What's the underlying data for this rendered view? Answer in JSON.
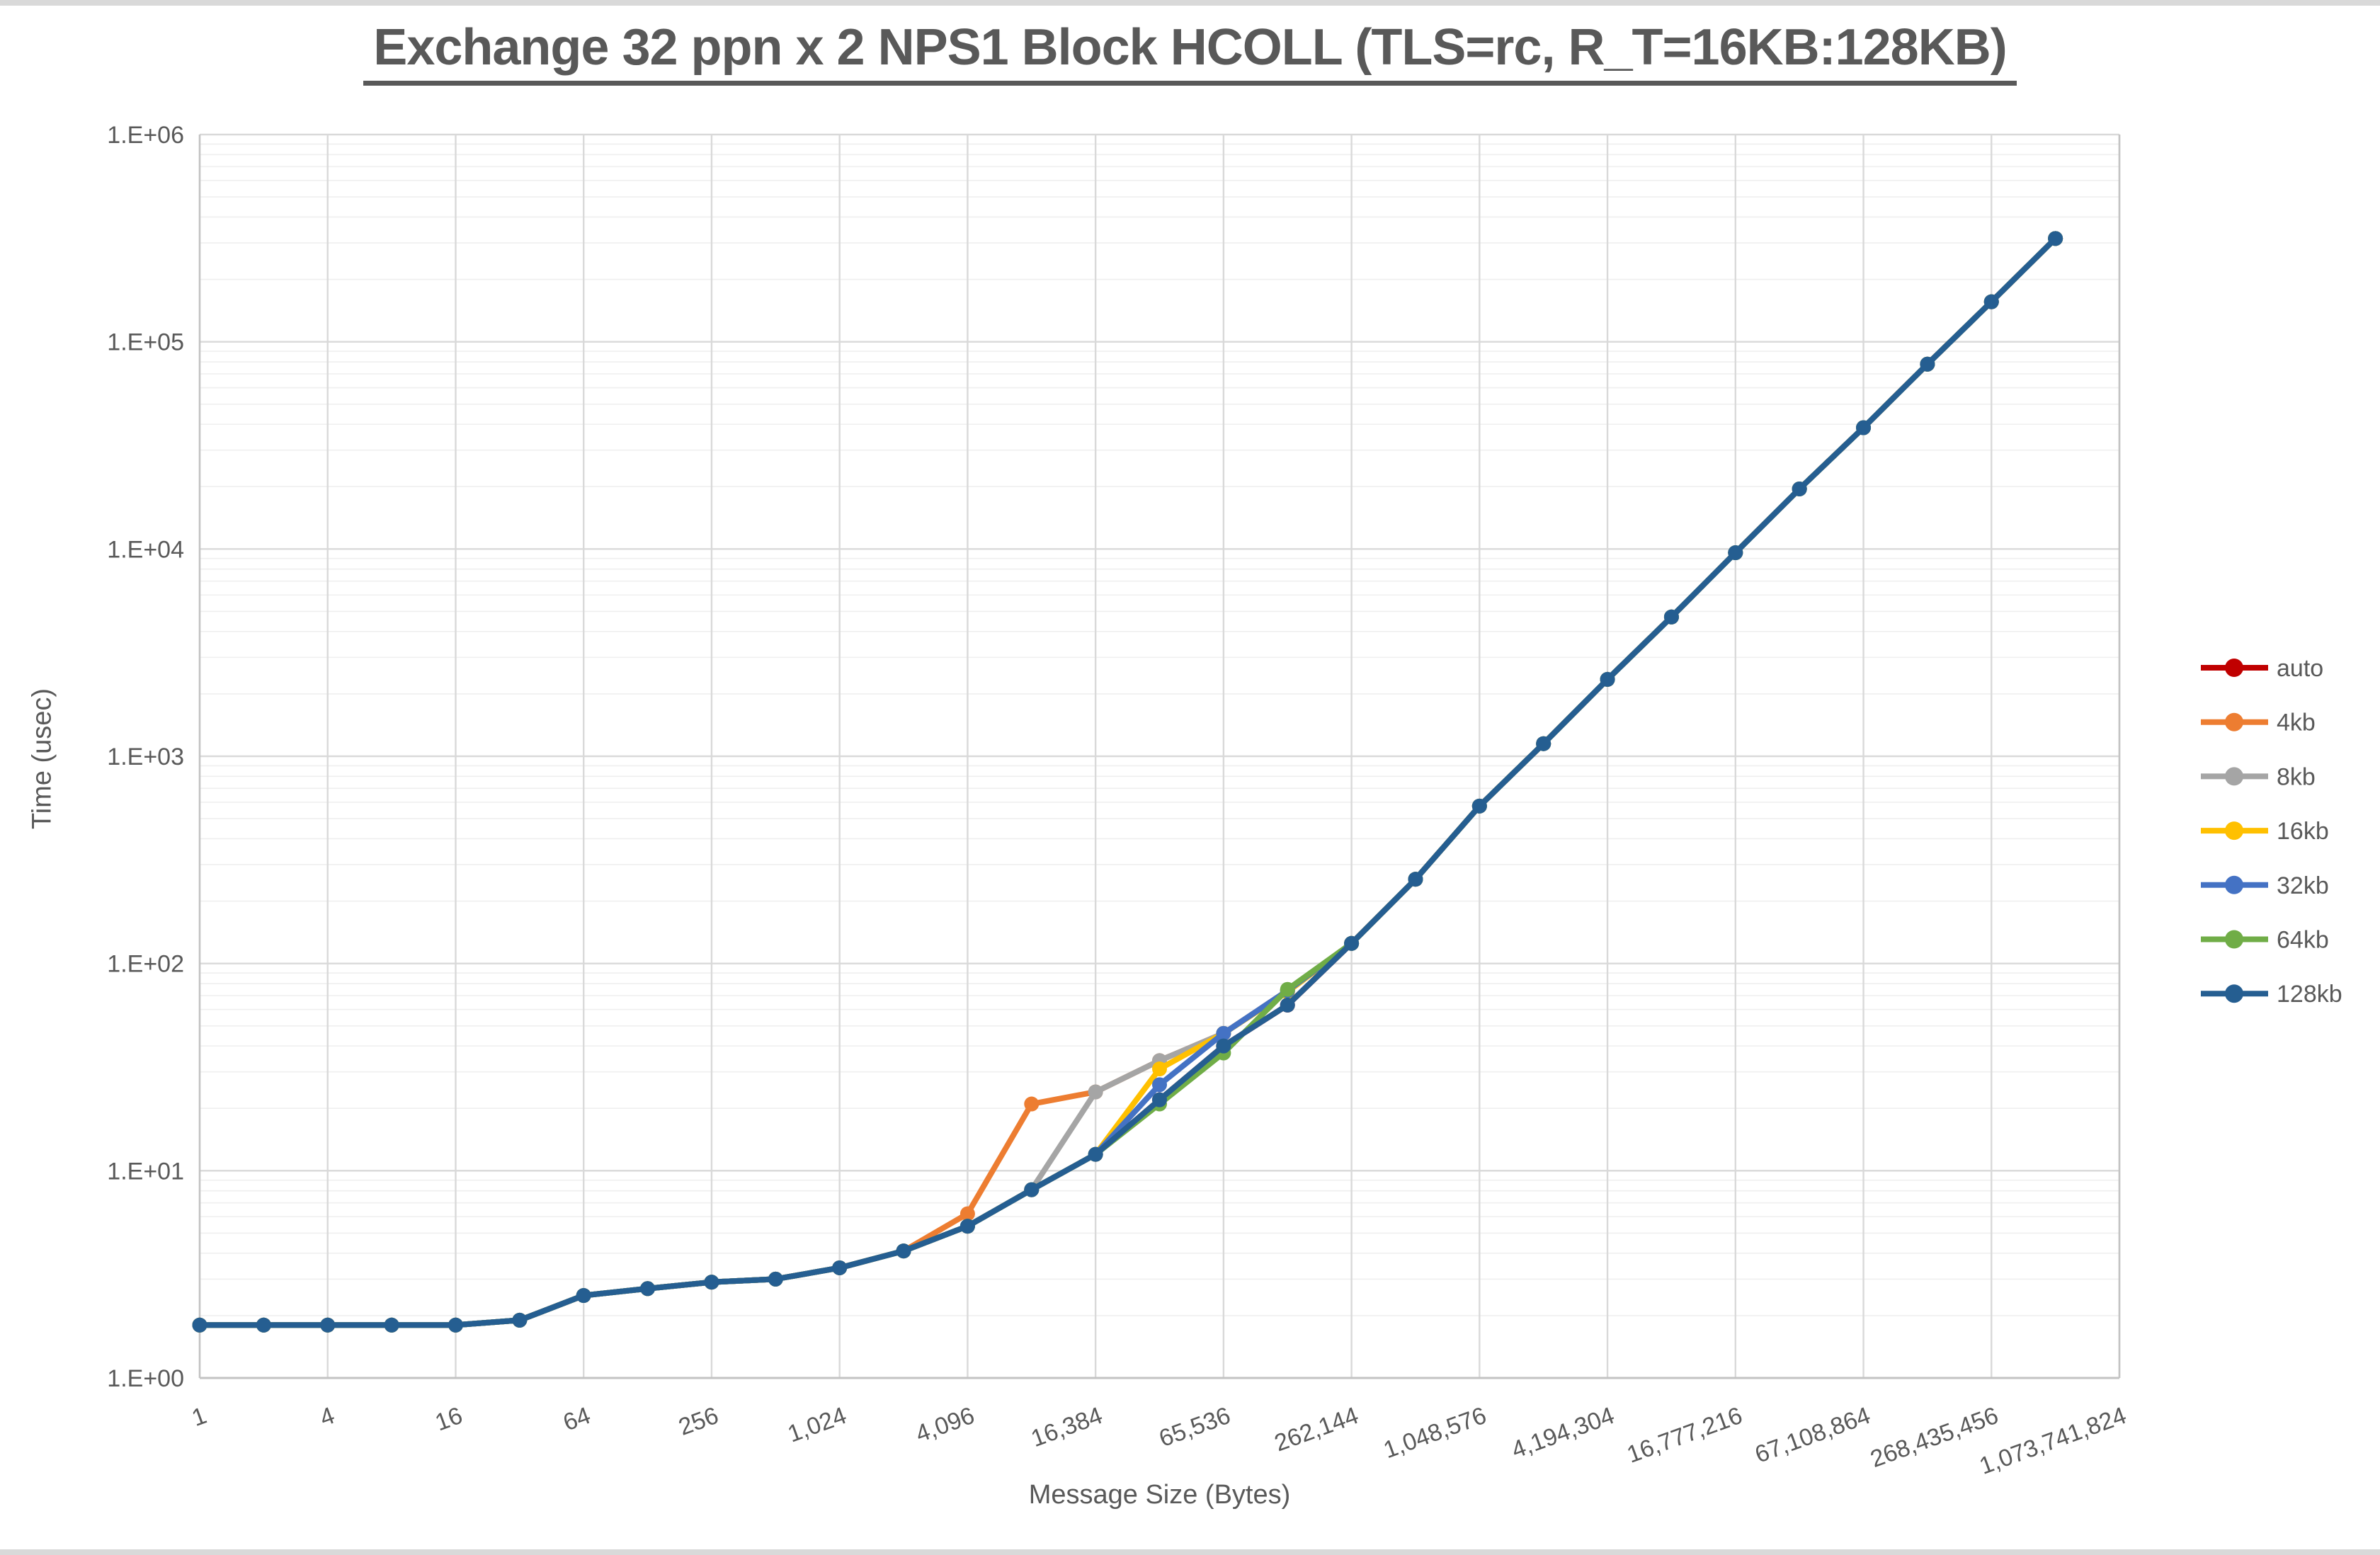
{
  "window": {
    "edge_strip_color": "#d9d9d9",
    "background": "#ffffff"
  },
  "title": {
    "text": "Exchange 32 ppn x 2 NPS1 Block HCOLL (TLS=rc, R_T=16KB:128KB)",
    "color": "#595959",
    "underlined": true
  },
  "axes": {
    "y": {
      "title": "Time (usec)",
      "scale": "log10",
      "tick_labels": [
        "1.E+00",
        "1.E+01",
        "1.E+02",
        "1.E+03",
        "1.E+04",
        "1.E+05",
        "1.E+06"
      ],
      "label_color": "#595959"
    },
    "x": {
      "title": "Message Size (Bytes)",
      "scale": "log2-categories",
      "tick_labels": [
        "1",
        "4",
        "16",
        "64",
        "256",
        "1,024",
        "4,096",
        "16,384",
        "65,536",
        "262,144",
        "1,048,576",
        "4,194,304",
        "16,777,216",
        "67,108,864",
        "268,435,456",
        "1,073,741,824"
      ],
      "label_color": "#595959",
      "label_rotation_deg": -20
    }
  },
  "legend": {
    "position": "right",
    "entries": [
      {
        "label": "auto",
        "color": "#C00000"
      },
      {
        "label": "4kb",
        "color": "#ED7D31"
      },
      {
        "label": "8kb",
        "color": "#A5A5A5"
      },
      {
        "label": "16kb",
        "color": "#FFC000"
      },
      {
        "label": "32kb",
        "color": "#4472C4"
      },
      {
        "label": "64kb",
        "color": "#70AD47"
      },
      {
        "label": "128kb",
        "color": "#255E91"
      }
    ],
    "text_color": "#595959"
  },
  "grid": {
    "major_color": "#d9d9d9",
    "minor_color": "#efefef",
    "border_color": "#c3c3c3",
    "minor_horizontal": true,
    "minor_vertical": false
  },
  "chart_data": {
    "type": "line",
    "title": "Exchange 32 ppn x 2 NPS1 Block HCOLL (TLS=rc, R_T=16KB:128KB)",
    "xlabel": "Message Size (Bytes)",
    "ylabel": "Time (usec)",
    "ylim": [
      1,
      1000000
    ],
    "x_domain_pow2": [
      0,
      30
    ],
    "x": [
      1,
      2,
      4,
      8,
      16,
      32,
      64,
      128,
      256,
      512,
      1024,
      2048,
      4096,
      8192,
      16384,
      32768,
      65536,
      131072,
      262144,
      524288,
      1048576,
      2097152,
      4194304,
      8388608,
      16777216,
      33554432,
      67108864,
      134217728,
      268435456,
      536870912
    ],
    "series": [
      {
        "name": "auto",
        "color": "#C00000",
        "values": [
          1.8,
          1.8,
          1.8,
          1.8,
          1.8,
          1.9,
          2.5,
          2.7,
          2.9,
          3.0,
          3.4,
          4.1,
          5.4,
          8.1,
          12,
          22,
          40,
          63,
          125,
          255,
          575,
          1150,
          2350,
          4700,
          9600,
          19500,
          38500,
          78000,
          156000,
          315000
        ]
      },
      {
        "name": "4kb",
        "color": "#ED7D31",
        "values": [
          1.8,
          1.8,
          1.8,
          1.8,
          1.8,
          1.9,
          2.5,
          2.7,
          2.9,
          3.0,
          3.4,
          4.1,
          6.2,
          21,
          24,
          34,
          46,
          74,
          125,
          255,
          575,
          1150,
          2350,
          4700,
          9600,
          19500,
          38500,
          78000,
          156000,
          315000
        ]
      },
      {
        "name": "8kb",
        "color": "#A5A5A5",
        "values": [
          1.8,
          1.8,
          1.8,
          1.8,
          1.8,
          1.9,
          2.5,
          2.7,
          2.9,
          3.0,
          3.4,
          4.1,
          5.4,
          8.1,
          24,
          34,
          46,
          74,
          125,
          255,
          575,
          1150,
          2350,
          4700,
          9600,
          19500,
          38500,
          78000,
          156000,
          315000
        ]
      },
      {
        "name": "16kb",
        "color": "#FFC000",
        "values": [
          1.8,
          1.8,
          1.8,
          1.8,
          1.8,
          1.9,
          2.5,
          2.7,
          2.9,
          3.0,
          3.4,
          4.1,
          5.4,
          8.1,
          12,
          31,
          46,
          73,
          125,
          255,
          575,
          1150,
          2350,
          4700,
          9600,
          19500,
          38500,
          78000,
          156000,
          315000
        ]
      },
      {
        "name": "32kb",
        "color": "#4472C4",
        "values": [
          1.8,
          1.8,
          1.8,
          1.8,
          1.8,
          1.9,
          2.5,
          2.7,
          2.9,
          3.0,
          3.4,
          4.1,
          5.4,
          8.1,
          12,
          26,
          46,
          74,
          125,
          255,
          575,
          1150,
          2350,
          4700,
          9600,
          19500,
          38500,
          78000,
          156000,
          315000
        ]
      },
      {
        "name": "64kb",
        "color": "#70AD47",
        "values": [
          1.8,
          1.8,
          1.8,
          1.8,
          1.8,
          1.9,
          2.5,
          2.7,
          2.9,
          3.0,
          3.4,
          4.1,
          5.4,
          8.1,
          12,
          21,
          37,
          75,
          125,
          255,
          575,
          1150,
          2350,
          4700,
          9600,
          19500,
          38500,
          78000,
          156000,
          315000
        ]
      },
      {
        "name": "128kb",
        "color": "#255E91",
        "values": [
          1.8,
          1.8,
          1.8,
          1.8,
          1.8,
          1.9,
          2.5,
          2.7,
          2.9,
          3.0,
          3.4,
          4.1,
          5.4,
          8.1,
          12,
          22,
          40,
          63,
          125,
          255,
          575,
          1150,
          2350,
          4700,
          9600,
          19500,
          38500,
          78000,
          156000,
          315000
        ]
      }
    ],
    "legend_position": "right",
    "grid": "horizontal major+minor (log), vertical major every 4x",
    "notes": "last category 1,073,741,824 is labeled on the axis but has no plotted point"
  }
}
